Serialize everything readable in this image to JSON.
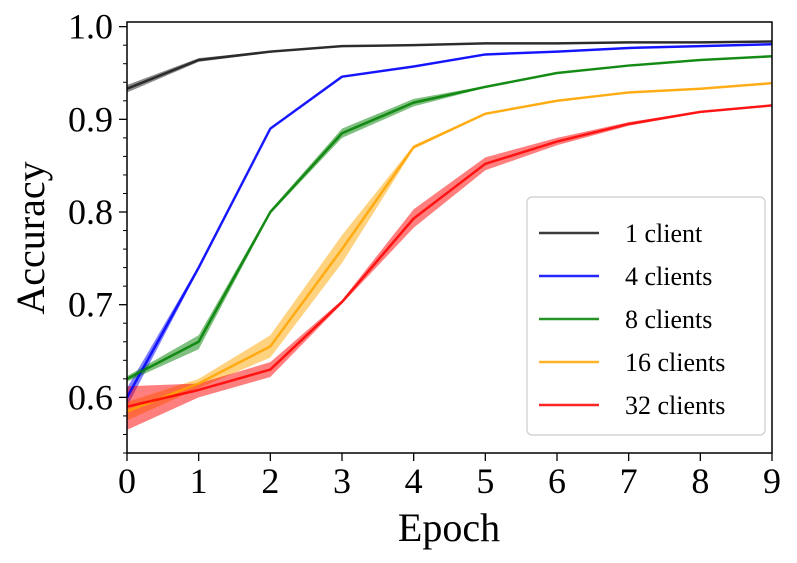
{
  "chart_data": {
    "type": "line",
    "title": "",
    "xlabel": "Epoch",
    "ylabel": "Accuracy",
    "xlim": [
      0,
      9
    ],
    "ylim": [
      0.54,
      1.005
    ],
    "x_ticks": [
      "0",
      "1",
      "2",
      "3",
      "4",
      "5",
      "6",
      "7",
      "8",
      "9"
    ],
    "y_ticks": [
      "0.6",
      "0.7",
      "0.8",
      "0.9",
      "1.0"
    ],
    "grid": false,
    "legend_position": "lower-right",
    "x": [
      0,
      1,
      2,
      3,
      4,
      5,
      6,
      7,
      8,
      9
    ],
    "series": [
      {
        "name": "1 client",
        "color": "#1a1a1a",
        "values": [
          0.933,
          0.964,
          0.973,
          0.979,
          0.98,
          0.982,
          0.982,
          0.983,
          0.983,
          0.984
        ],
        "lower": [
          0.929,
          0.962,
          0.972,
          0.978,
          0.979,
          0.981,
          0.981,
          0.982,
          0.982,
          0.983
        ],
        "upper": [
          0.937,
          0.966,
          0.974,
          0.98,
          0.981,
          0.983,
          0.983,
          0.984,
          0.984,
          0.985
        ]
      },
      {
        "name": "4 clients",
        "color": "#0000ff",
        "values": [
          0.6,
          0.74,
          0.89,
          0.946,
          0.957,
          0.97,
          0.973,
          0.977,
          0.979,
          0.981
        ],
        "lower": [
          0.59,
          0.738,
          0.889,
          0.945,
          0.956,
          0.969,
          0.972,
          0.976,
          0.978,
          0.98
        ],
        "upper": [
          0.61,
          0.742,
          0.891,
          0.947,
          0.958,
          0.971,
          0.974,
          0.978,
          0.98,
          0.982
        ]
      },
      {
        "name": "8 clients",
        "color": "#008000",
        "values": [
          0.62,
          0.66,
          0.8,
          0.885,
          0.918,
          0.935,
          0.95,
          0.958,
          0.964,
          0.968
        ],
        "lower": [
          0.617,
          0.652,
          0.798,
          0.88,
          0.914,
          0.934,
          0.949,
          0.957,
          0.963,
          0.967
        ],
        "upper": [
          0.623,
          0.667,
          0.802,
          0.89,
          0.922,
          0.936,
          0.951,
          0.959,
          0.965,
          0.969
        ]
      },
      {
        "name": "16 clients",
        "color": "#ffa500",
        "values": [
          0.585,
          0.615,
          0.655,
          0.76,
          0.87,
          0.906,
          0.92,
          0.929,
          0.933,
          0.939
        ],
        "lower": [
          0.575,
          0.61,
          0.643,
          0.745,
          0.868,
          0.905,
          0.919,
          0.928,
          0.932,
          0.938
        ],
        "upper": [
          0.595,
          0.62,
          0.667,
          0.775,
          0.872,
          0.907,
          0.921,
          0.93,
          0.934,
          0.94
        ]
      },
      {
        "name": "32 clients",
        "color": "#ff0000",
        "values": [
          0.59,
          0.608,
          0.63,
          0.703,
          0.793,
          0.852,
          0.876,
          0.895,
          0.908,
          0.915
        ],
        "lower": [
          0.565,
          0.6,
          0.622,
          0.701,
          0.783,
          0.845,
          0.872,
          0.893,
          0.907,
          0.914
        ],
        "upper": [
          0.612,
          0.615,
          0.638,
          0.705,
          0.803,
          0.859,
          0.88,
          0.897,
          0.909,
          0.916
        ]
      }
    ]
  }
}
